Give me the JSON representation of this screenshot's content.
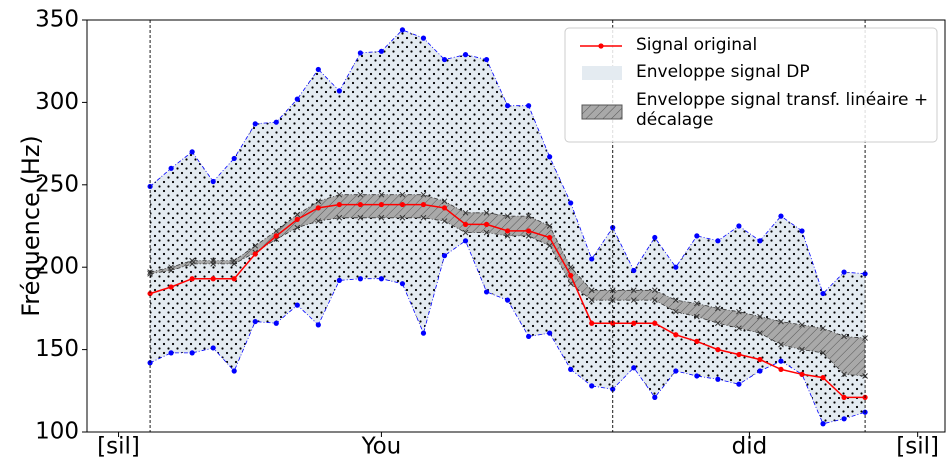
{
  "chart_data": {
    "type": "band-line",
    "ylabel": "Fréquence (Hz)",
    "x": [
      0,
      1,
      2,
      3,
      4,
      5,
      6,
      7,
      8,
      9,
      10,
      11,
      12,
      13,
      14,
      15,
      16,
      17,
      18,
      19,
      20,
      21,
      22,
      23,
      24,
      25,
      26,
      27,
      28,
      29,
      30,
      31,
      32,
      33,
      34
    ],
    "xlim": [
      -3,
      37.8
    ],
    "xticks": [
      {
        "value": -1.5,
        "label": "[sil]"
      },
      {
        "value": 11,
        "label": "You"
      },
      {
        "value": 28.5,
        "label": "did"
      },
      {
        "value": 36.5,
        "label": "[sil]"
      }
    ],
    "vlines": [
      0,
      22,
      34
    ],
    "ylim": [
      100,
      350
    ],
    "yticks": [
      100,
      150,
      200,
      250,
      300,
      350
    ],
    "legend": "upper right",
    "series": [
      {
        "name": "Signal original",
        "kind": "line",
        "color": "#ff0000",
        "values": [
          184,
          188,
          193,
          193,
          193,
          208,
          219,
          229,
          236,
          238,
          238,
          238,
          238,
          238,
          236,
          226,
          226,
          222,
          222,
          218,
          195,
          166,
          166,
          166,
          166,
          159,
          155,
          150,
          147,
          144,
          138,
          135,
          133,
          121,
          121
        ]
      },
      {
        "name": "Enveloppe signal DP",
        "kind": "band",
        "color": "#0000ff",
        "fill": "#e4ebf1",
        "upper": [
          249,
          260,
          270,
          252,
          266,
          287,
          288,
          302,
          320,
          307,
          330,
          331,
          344,
          339,
          326,
          329,
          326,
          298,
          298,
          267,
          239,
          205,
          224,
          198,
          218,
          200,
          219,
          216,
          225,
          216,
          231,
          222,
          184,
          197,
          196
        ],
        "lower": [
          142,
          148,
          148,
          151,
          137,
          167,
          166,
          177,
          165,
          192,
          193,
          193,
          190,
          160,
          207,
          216,
          185,
          180,
          158,
          160,
          138,
          128,
          126,
          139,
          121,
          137,
          134,
          132,
          129,
          137,
          143,
          135,
          105,
          108,
          112
        ]
      },
      {
        "name": "Enveloppe signal transf. linéaire + décalage",
        "kind": "band",
        "color": "#333333",
        "fill": "#a9a9a9",
        "upper": [
          197,
          200,
          204,
          204,
          204,
          213,
          222,
          232,
          240,
          244,
          244,
          244,
          244,
          244,
          240,
          233,
          233,
          231,
          231,
          225,
          200,
          186,
          186,
          186,
          186,
          180,
          178,
          175,
          173,
          170,
          167,
          165,
          163,
          158,
          157
        ],
        "lower": [
          196,
          198,
          202,
          202,
          202,
          209,
          217,
          224,
          228,
          230,
          230,
          230,
          230,
          230,
          228,
          221,
          221,
          219,
          219,
          213,
          190,
          180,
          180,
          180,
          180,
          173,
          170,
          166,
          163,
          160,
          153,
          150,
          148,
          135,
          134
        ]
      }
    ]
  }
}
